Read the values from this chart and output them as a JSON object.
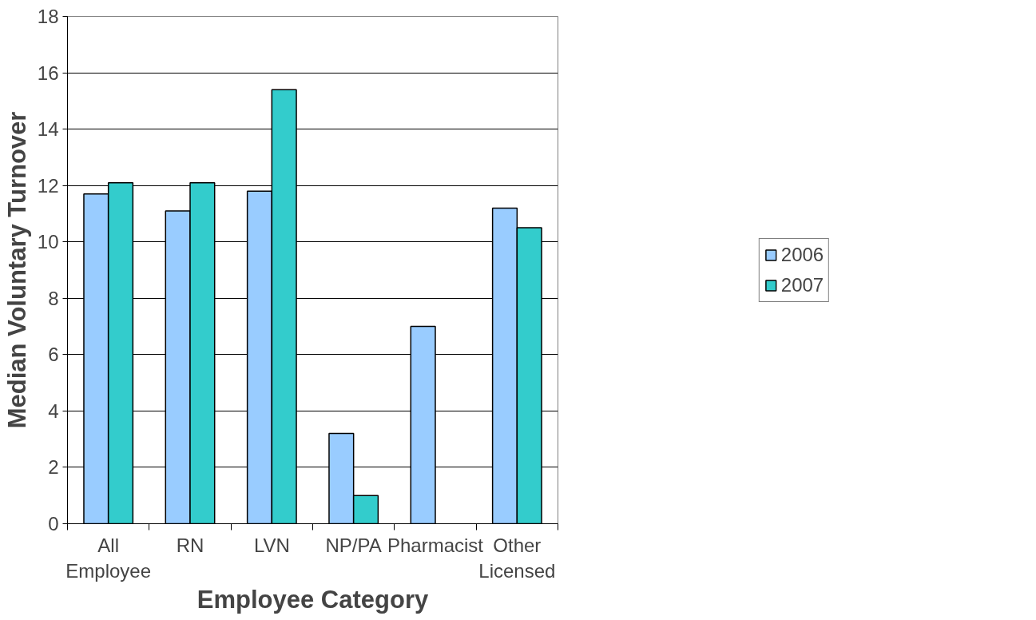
{
  "chart_data": {
    "type": "bar",
    "categories": [
      "All\nEmployee",
      "RN",
      "LVN",
      "NP/PA",
      "Pharmacist",
      "Other\nLicensed"
    ],
    "series": [
      {
        "name": "2006",
        "color": "#99ccff",
        "values": [
          11.7,
          11.1,
          11.8,
          3.2,
          7.0,
          11.2
        ]
      },
      {
        "name": "2007",
        "color": "#33cccc",
        "values": [
          12.1,
          12.1,
          15.4,
          1.0,
          null,
          10.5
        ]
      }
    ],
    "xlabel": "Employee Category",
    "ylabel": "Median Voluntary Turnover",
    "ylim": [
      0,
      18
    ],
    "yticks": [
      0,
      2,
      4,
      6,
      8,
      10,
      12,
      14,
      16,
      18
    ],
    "grid": "y",
    "legend": "right"
  }
}
